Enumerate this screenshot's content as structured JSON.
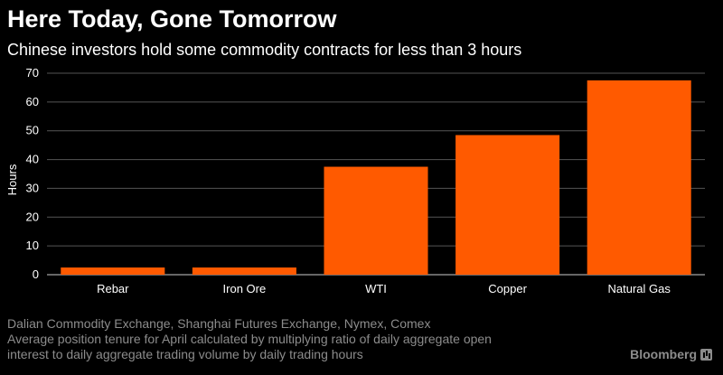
{
  "header": {
    "title": "Here Today, Gone Tomorrow",
    "subtitle": "Chinese investors hold some commodity contracts for less than 3 hours"
  },
  "footer": {
    "source": "Dalian Commodity Exchange, Shanghai Futures Exchange, Nymex, Comex",
    "note_line1": "Average position tenure for April calculated by multiplying ratio of daily aggregate open",
    "note_line2": "interest to daily aggregate trading volume by daily trading hours"
  },
  "brand": {
    "name": "Bloomberg",
    "icon": "bloomberg-chart-icon"
  },
  "colors": {
    "bar": "#ff5a00",
    "background": "#000000",
    "grid": "#555555",
    "muted": "#8c8c8c"
  },
  "chart_data": {
    "type": "bar",
    "title": "Here Today, Gone Tomorrow",
    "subtitle": "Chinese investors hold some commodity contracts for less than 3 hours",
    "categories": [
      "Rebar",
      "Iron Ore",
      "WTI",
      "Copper",
      "Natural Gas"
    ],
    "values": [
      2.5,
      2.5,
      37.5,
      48.5,
      67.5
    ],
    "xlabel": "",
    "ylabel": "Hours",
    "ylim": [
      0,
      70
    ],
    "yticks": [
      0,
      10,
      20,
      30,
      40,
      50,
      60,
      70
    ],
    "grid": true
  }
}
